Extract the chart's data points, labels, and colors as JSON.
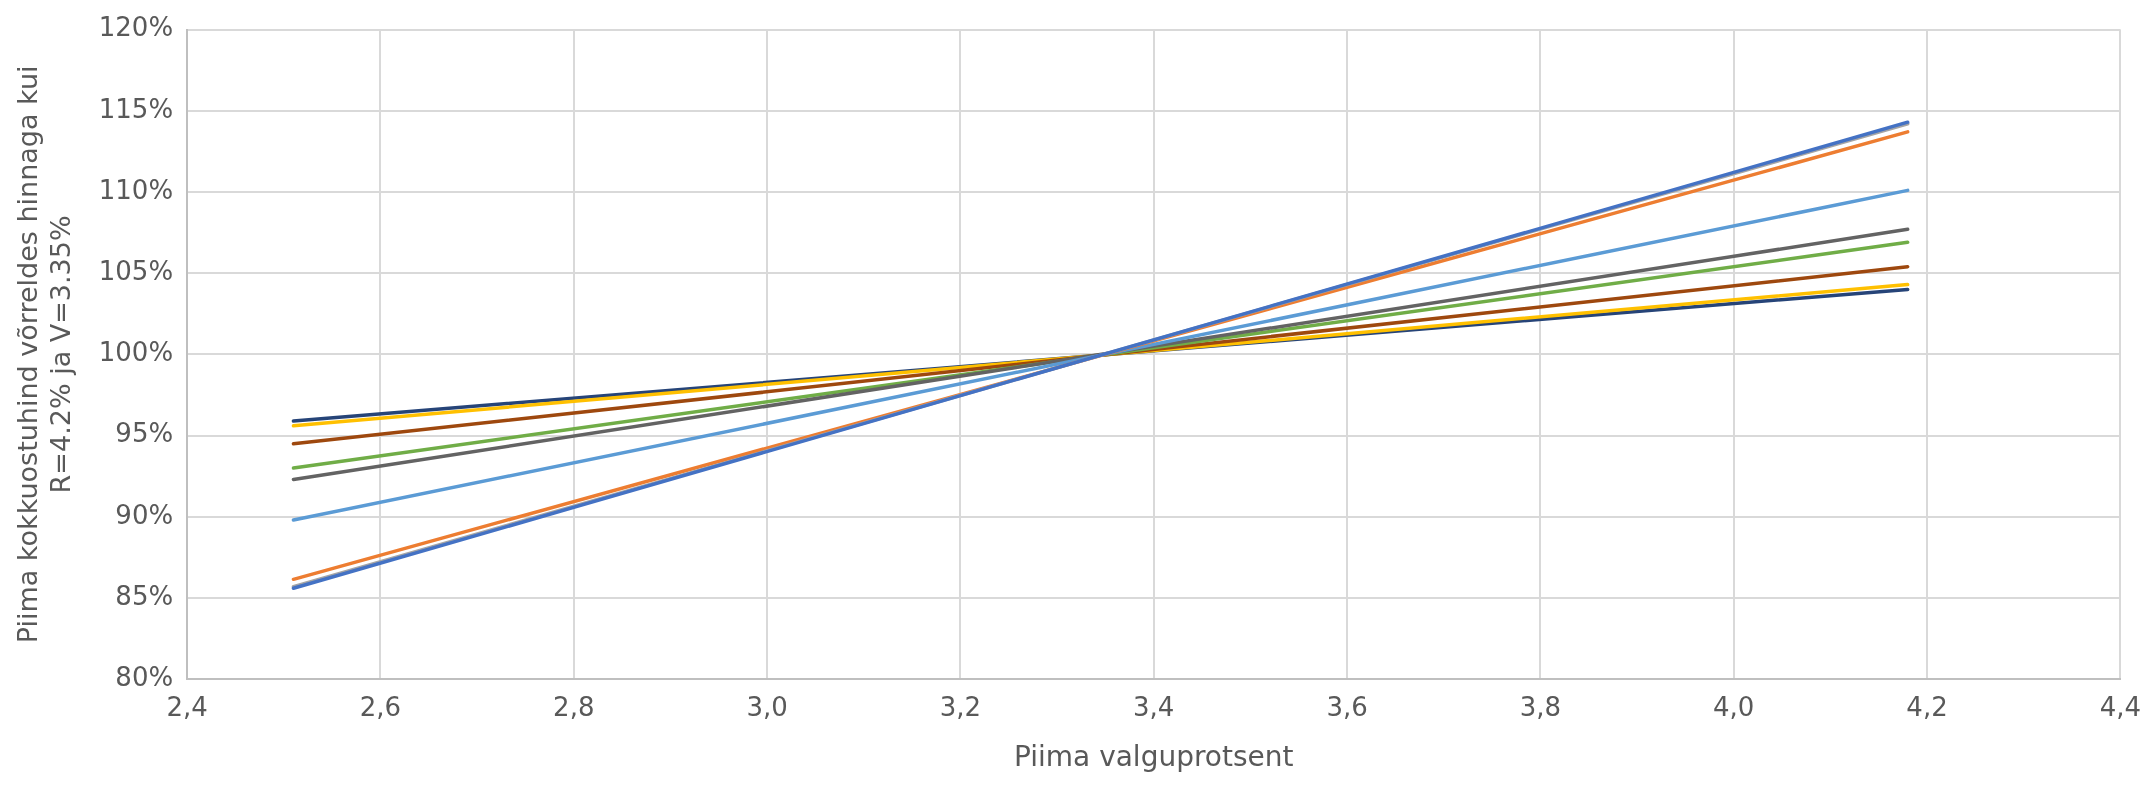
{
  "chart_data": {
    "type": "line",
    "xlabel": "Piima valguprotsent",
    "ylabel": "Piima kokkuostuhind võrreldes hinnaga kui\nR=4.2% ja V=3.35%",
    "x": [
      2.51,
      4.18
    ],
    "series": [
      {
        "color": "#4472c4",
        "values": [
          85.6,
          114.3
        ]
      },
      {
        "color": "#a5a5a5",
        "values": [
          85.7,
          114.2
        ]
      },
      {
        "color": "#ed7d31",
        "values": [
          86.15,
          113.7
        ]
      },
      {
        "color": "#5b9bd5",
        "values": [
          89.8,
          110.1
        ]
      },
      {
        "color": "#636363",
        "values": [
          92.3,
          107.7
        ]
      },
      {
        "color": "#70ad47",
        "values": [
          93.0,
          106.9
        ]
      },
      {
        "color": "#9e480e",
        "values": [
          94.5,
          105.4
        ]
      },
      {
        "color": "#ffc000",
        "values": [
          95.6,
          104.3
        ]
      },
      {
        "color": "#264478",
        "values": [
          95.9,
          104.0
        ]
      }
    ],
    "xlim": [
      2.4,
      4.4
    ],
    "xticks": [
      {
        "value": 2.4,
        "label": "2,4"
      },
      {
        "value": 2.6,
        "label": "2,6"
      },
      {
        "value": 2.8,
        "label": "2,8"
      },
      {
        "value": 3.0,
        "label": "3,0"
      },
      {
        "value": 3.2,
        "label": "3,2"
      },
      {
        "value": 3.4,
        "label": "3,4"
      },
      {
        "value": 3.6,
        "label": "3,6"
      },
      {
        "value": 3.8,
        "label": "3,8"
      },
      {
        "value": 4.0,
        "label": "4,0"
      },
      {
        "value": 4.2,
        "label": "4,2"
      },
      {
        "value": 4.4,
        "label": "4,4"
      }
    ],
    "ylim": [
      80,
      120
    ],
    "yticks": [
      {
        "value": 80,
        "label": "80%"
      },
      {
        "value": 85,
        "label": "85%"
      },
      {
        "value": 90,
        "label": "90%"
      },
      {
        "value": 95,
        "label": "95%"
      },
      {
        "value": 100,
        "label": "100%"
      },
      {
        "value": 105,
        "label": "105%"
      },
      {
        "value": 110,
        "label": "110%"
      },
      {
        "value": 115,
        "label": "115%"
      },
      {
        "value": 120,
        "label": "120%"
      }
    ],
    "grid": true,
    "legend": false,
    "marker": "none",
    "line_style": "solid"
  }
}
